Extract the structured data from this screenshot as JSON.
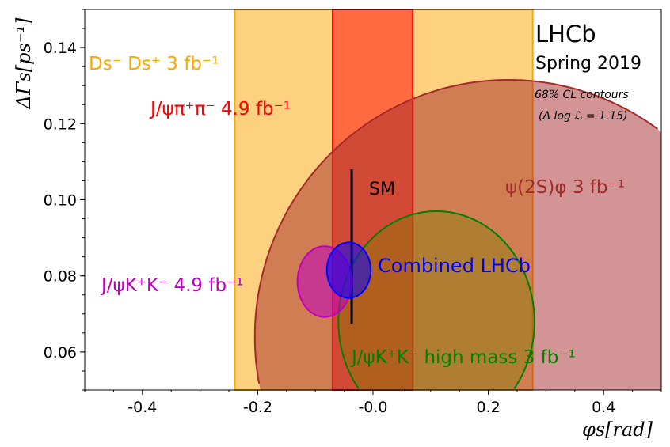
{
  "chart_data": {
    "type": "contour",
    "xlabel": "φs[rad]",
    "ylabel": "ΔΓs[ps⁻¹]",
    "xlim": [
      -0.5,
      0.5
    ],
    "ylim": [
      0.05,
      0.15
    ],
    "xticks": [
      -0.4,
      -0.2,
      0.0,
      0.2,
      0.4
    ],
    "xtick_labels": [
      "-0.4",
      "-0.2",
      "-0.0",
      "0.2",
      "0.4"
    ],
    "yticks": [
      0.06,
      0.08,
      0.1,
      0.12,
      0.14
    ],
    "ytick_labels": [
      "0.06",
      "0.08",
      "0.10",
      "0.12",
      "0.14"
    ],
    "grid": false,
    "annotations": {
      "experiment": "LHCb",
      "period": "Spring 2019",
      "contour_level": "68% CL contours",
      "delta_log_l": "(Δ log ℒ = 1.15)",
      "sm_label": "SM"
    },
    "standard_model": {
      "x": -0.037,
      "y_range": [
        0.0675,
        0.108
      ],
      "color": "#000000"
    },
    "bands": [
      {
        "name": "Ds⁻ Ds⁺ 3 fb⁻¹",
        "x_range": [
          -0.24,
          0.277
        ],
        "fill": "#FDD17F",
        "edge": "#FFA500"
      },
      {
        "name": "J/ψπ⁺π⁻ 4.9 fb⁻¹",
        "x_range": [
          -0.07,
          0.069
        ],
        "fill": "#FF6A40",
        "edge": "#FF0000"
      }
    ],
    "ellipses": [
      {
        "name": "ψ(2S)φ 3 fb⁻¹",
        "center": [
          0.235,
          0.064
        ],
        "semi_axes": [
          0.44,
          0.0675
        ],
        "fill": "#A52A2A",
        "edge": "#A52A2A"
      },
      {
        "name": "J/ψK⁺K⁻ high mass 3 fb⁻¹",
        "center": [
          0.11,
          0.068
        ],
        "semi_axes": [
          0.17,
          0.029
        ],
        "fill": "#808000",
        "edge": "#008000"
      },
      {
        "name": "J/ψK⁺K⁻ 4.9 fb⁻¹",
        "center": [
          -0.084,
          0.0785
        ],
        "semi_axes": [
          0.047,
          0.0093
        ],
        "fill": "#BF00BF",
        "edge": "#BF00BF"
      },
      {
        "name": "Combined LHCb",
        "center": [
          -0.042,
          0.0815
        ],
        "semi_axes": [
          0.038,
          0.0073
        ],
        "fill": "#0000FF",
        "edge": "#0000FF"
      }
    ],
    "labels": {
      "dsds": "Ds⁻ Ds⁺ 3 fb⁻¹",
      "jpsipipi": "J/ψπ⁺π⁻ 4.9 fb⁻¹",
      "psi2sphi": "ψ(2S)φ 3 fb⁻¹",
      "jpsikk": "J/ψK⁺K⁻ 4.9 fb⁻¹",
      "combined": "Combined LHCb",
      "jpsikk_high": "J/ψK⁺K⁻ high mass 3 fb⁻¹"
    }
  }
}
